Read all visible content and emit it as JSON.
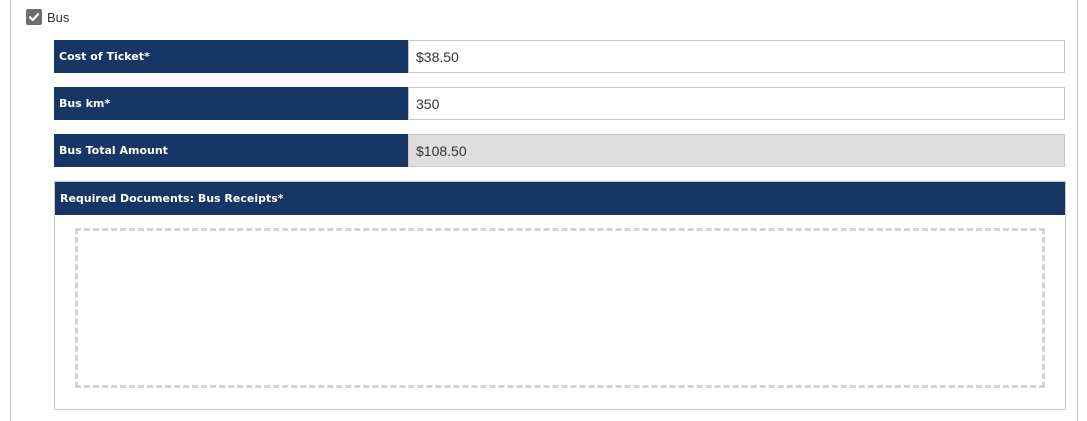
{
  "transport": {
    "checkbox_label": "Bus",
    "checked": true
  },
  "fields": {
    "cost_of_ticket": {
      "label": "Cost of Ticket*",
      "value": "$38.50"
    },
    "bus_km": {
      "label": "Bus km*",
      "value": "350"
    },
    "bus_total": {
      "label": "Bus Total Amount",
      "value": "$108.50"
    }
  },
  "documents": {
    "header": "Required Documents: Bus Receipts*"
  },
  "icons": {
    "checkbox": "checkmark-icon"
  },
  "colors": {
    "header_bg": "#163766",
    "checkbox_bg": "#6e6e6e",
    "readonly_bg": "#dedede",
    "border": "#c8c8c8"
  }
}
